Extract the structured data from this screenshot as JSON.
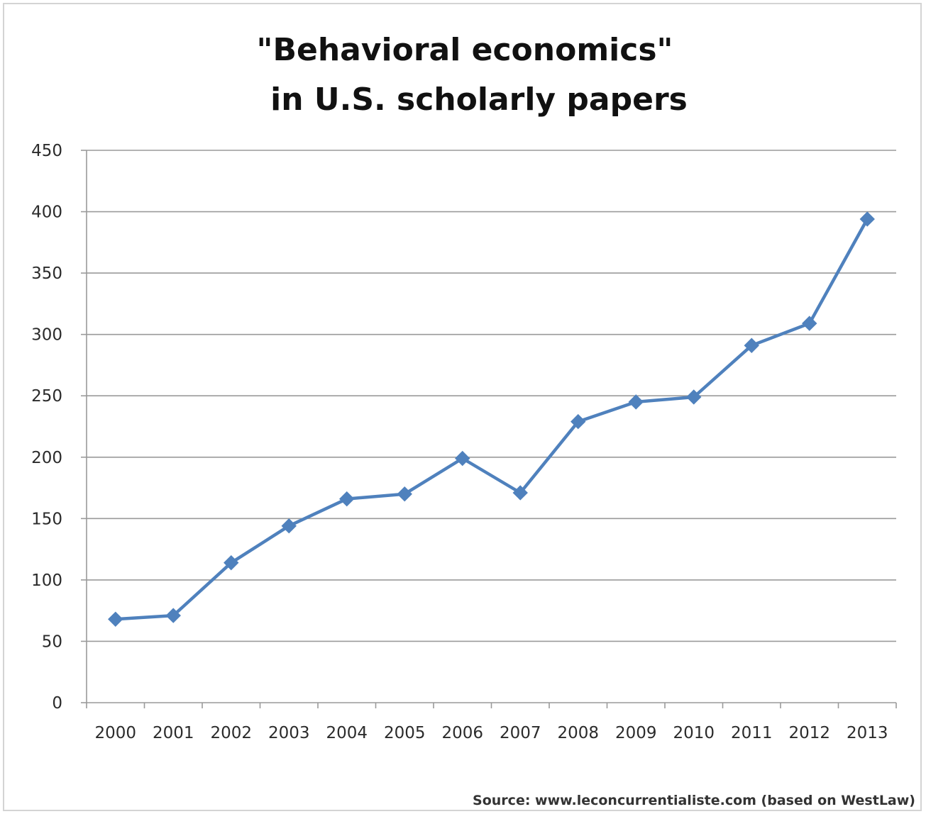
{
  "chart_data": {
    "type": "line",
    "title": "\"Behavioral economics\"",
    "subtitle": "in U.S. scholarly papers",
    "xlabel": "",
    "ylabel": "",
    "categories": [
      "2000",
      "2001",
      "2002",
      "2003",
      "2004",
      "2005",
      "2006",
      "2007",
      "2008",
      "2009",
      "2010",
      "2011",
      "2012",
      "2013"
    ],
    "series": [
      {
        "values": [
          68,
          71,
          114,
          144,
          166,
          170,
          199,
          171,
          229,
          245,
          249,
          291,
          309,
          394
        ],
        "color": "#4f81bd",
        "marker": "diamond"
      }
    ],
    "ylim": [
      0,
      450
    ],
    "yticks": [
      0,
      50,
      100,
      150,
      200,
      250,
      300,
      350,
      400,
      450
    ],
    "grid": true,
    "legend": "none",
    "source": "Source: www.leconcurrentialiste.com (based on WestLaw)"
  }
}
